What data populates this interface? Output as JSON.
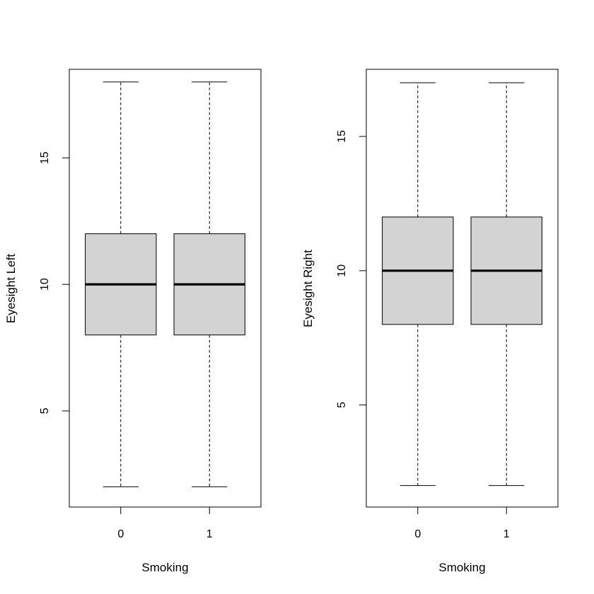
{
  "chart_data": [
    {
      "type": "box",
      "xlabel": "Smoking",
      "ylabel": "Eyesight Left",
      "categories": [
        "0",
        "1"
      ],
      "ylim": [
        1.2,
        18.5
      ],
      "yticks": [
        5,
        10,
        15
      ],
      "box_color": "#d3d3d3",
      "boxes": [
        {
          "category": "0",
          "min": 2,
          "q1": 8,
          "median": 10,
          "q3": 12,
          "max": 18
        },
        {
          "category": "1",
          "min": 2,
          "q1": 8,
          "median": 10,
          "q3": 12,
          "max": 18
        }
      ]
    },
    {
      "type": "box",
      "xlabel": "Smoking",
      "ylabel": "Eyesight Right",
      "categories": [
        "0",
        "1"
      ],
      "ylim": [
        1.2,
        17.5
      ],
      "yticks": [
        5,
        10,
        15
      ],
      "box_color": "#d3d3d3",
      "boxes": [
        {
          "category": "0",
          "min": 2,
          "q1": 8,
          "median": 10,
          "q3": 12,
          "max": 17
        },
        {
          "category": "1",
          "min": 2,
          "q1": 8,
          "median": 10,
          "q3": 12,
          "max": 17
        }
      ]
    }
  ]
}
